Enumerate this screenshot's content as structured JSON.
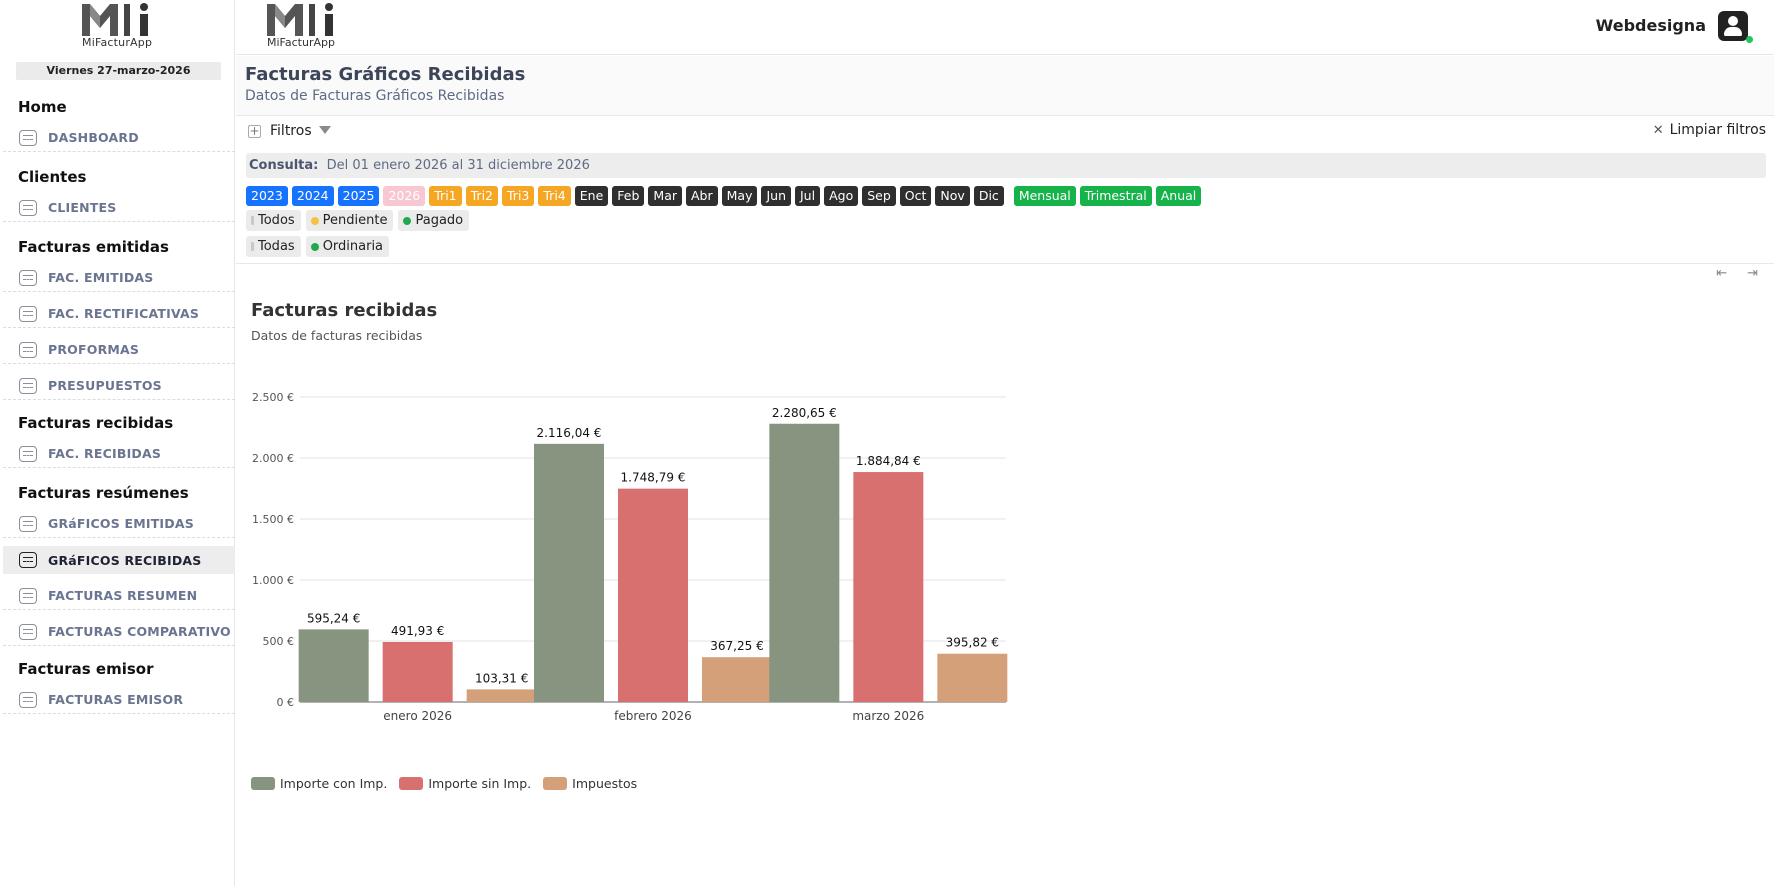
{
  "app": {
    "logo_text": "MiFacturApp",
    "user_name": "Webdesigna"
  },
  "sidebar": {
    "date": "Viernes 27-marzo-2026",
    "sections": [
      {
        "title": "Home",
        "items": [
          "DASHBOARD"
        ]
      },
      {
        "title": "Clientes",
        "items": [
          "CLIENTES"
        ]
      },
      {
        "title": "Facturas emitidas",
        "items": [
          "FAC. EMITIDAS",
          "FAC. RECTIFICATIVAS",
          "PROFORMAS",
          "PRESUPUESTOS"
        ]
      },
      {
        "title": "Facturas recibidas",
        "items": [
          "FAC. RECIBIDAS"
        ]
      },
      {
        "title": "Facturas resúmenes",
        "items": [
          "GRáFICOS EMITIDAS",
          "GRáFICOS RECIBIDAS",
          "FACTURAS RESUMEN",
          "FACTURAS COMPARATIVO"
        ]
      },
      {
        "title": "Facturas emisor",
        "items": [
          "FACTURAS EMISOR"
        ]
      }
    ],
    "active_item": "GRáFICOS RECIBIDAS"
  },
  "page": {
    "title": "Facturas Gráficos Recibidas",
    "subtitle": "Datos de Facturas Gráficos Recibidas"
  },
  "filters": {
    "label": "Filtros",
    "clear_label": "Limpiar filtros",
    "consulta_label": "Consulta:",
    "consulta_value": "Del 01 enero 2026 al 31 diciembre 2026",
    "years": [
      "2023",
      "2024",
      "2025",
      "2026"
    ],
    "selected_year": "2026",
    "quarters": [
      "Tri1",
      "Tri2",
      "Tri3",
      "Tri4"
    ],
    "months": [
      "Ene",
      "Feb",
      "Mar",
      "Abr",
      "May",
      "Jun",
      "Jul",
      "Ago",
      "Sep",
      "Oct",
      "Nov",
      "Dic"
    ],
    "periods": [
      "Mensual",
      "Trimestral",
      "Anual"
    ],
    "status": [
      {
        "label": "Todos",
        "color": "#c8c8c8"
      },
      {
        "label": "Pendiente",
        "color": "#f5c242"
      },
      {
        "label": "Pagado",
        "color": "#22a94f"
      }
    ],
    "types": [
      {
        "label": "Todas",
        "color": "#c8c8c8"
      },
      {
        "label": "Ordinaria",
        "color": "#22a94f"
      }
    ]
  },
  "chart": {
    "title": "Facturas recibidas",
    "subtitle": "Datos de facturas recibidas"
  },
  "chart_data": {
    "type": "bar",
    "categories": [
      "enero 2026",
      "febrero 2026",
      "marzo 2026"
    ],
    "series": [
      {
        "name": "Importe con Imp.",
        "color": "#879580",
        "values": [
          595.24,
          2116.04,
          2280.65
        ],
        "labels": [
          "595,24 €",
          "2.116,04 €",
          "2.280,65 €"
        ]
      },
      {
        "name": "Importe sin Imp.",
        "color": "#d97070",
        "values": [
          491.93,
          1748.79,
          1884.84
        ],
        "labels": [
          "491,93 €",
          "1.748,79 €",
          "1.884,84 €"
        ]
      },
      {
        "name": "Impuestos",
        "color": "#d4a07a",
        "values": [
          103.31,
          367.25,
          395.82
        ],
        "labels": [
          "103,31 €",
          "367,25 €",
          "395,82 €"
        ]
      }
    ],
    "yticks": [
      0,
      500,
      1000,
      1500,
      2000,
      2500
    ],
    "ytick_labels": [
      "0 €",
      "500 €",
      "1.000 €",
      "1.500 €",
      "2.000 €",
      "2.500 €"
    ],
    "ylim": [
      0,
      2500
    ],
    "grid": true,
    "legend": "bottom-left"
  }
}
